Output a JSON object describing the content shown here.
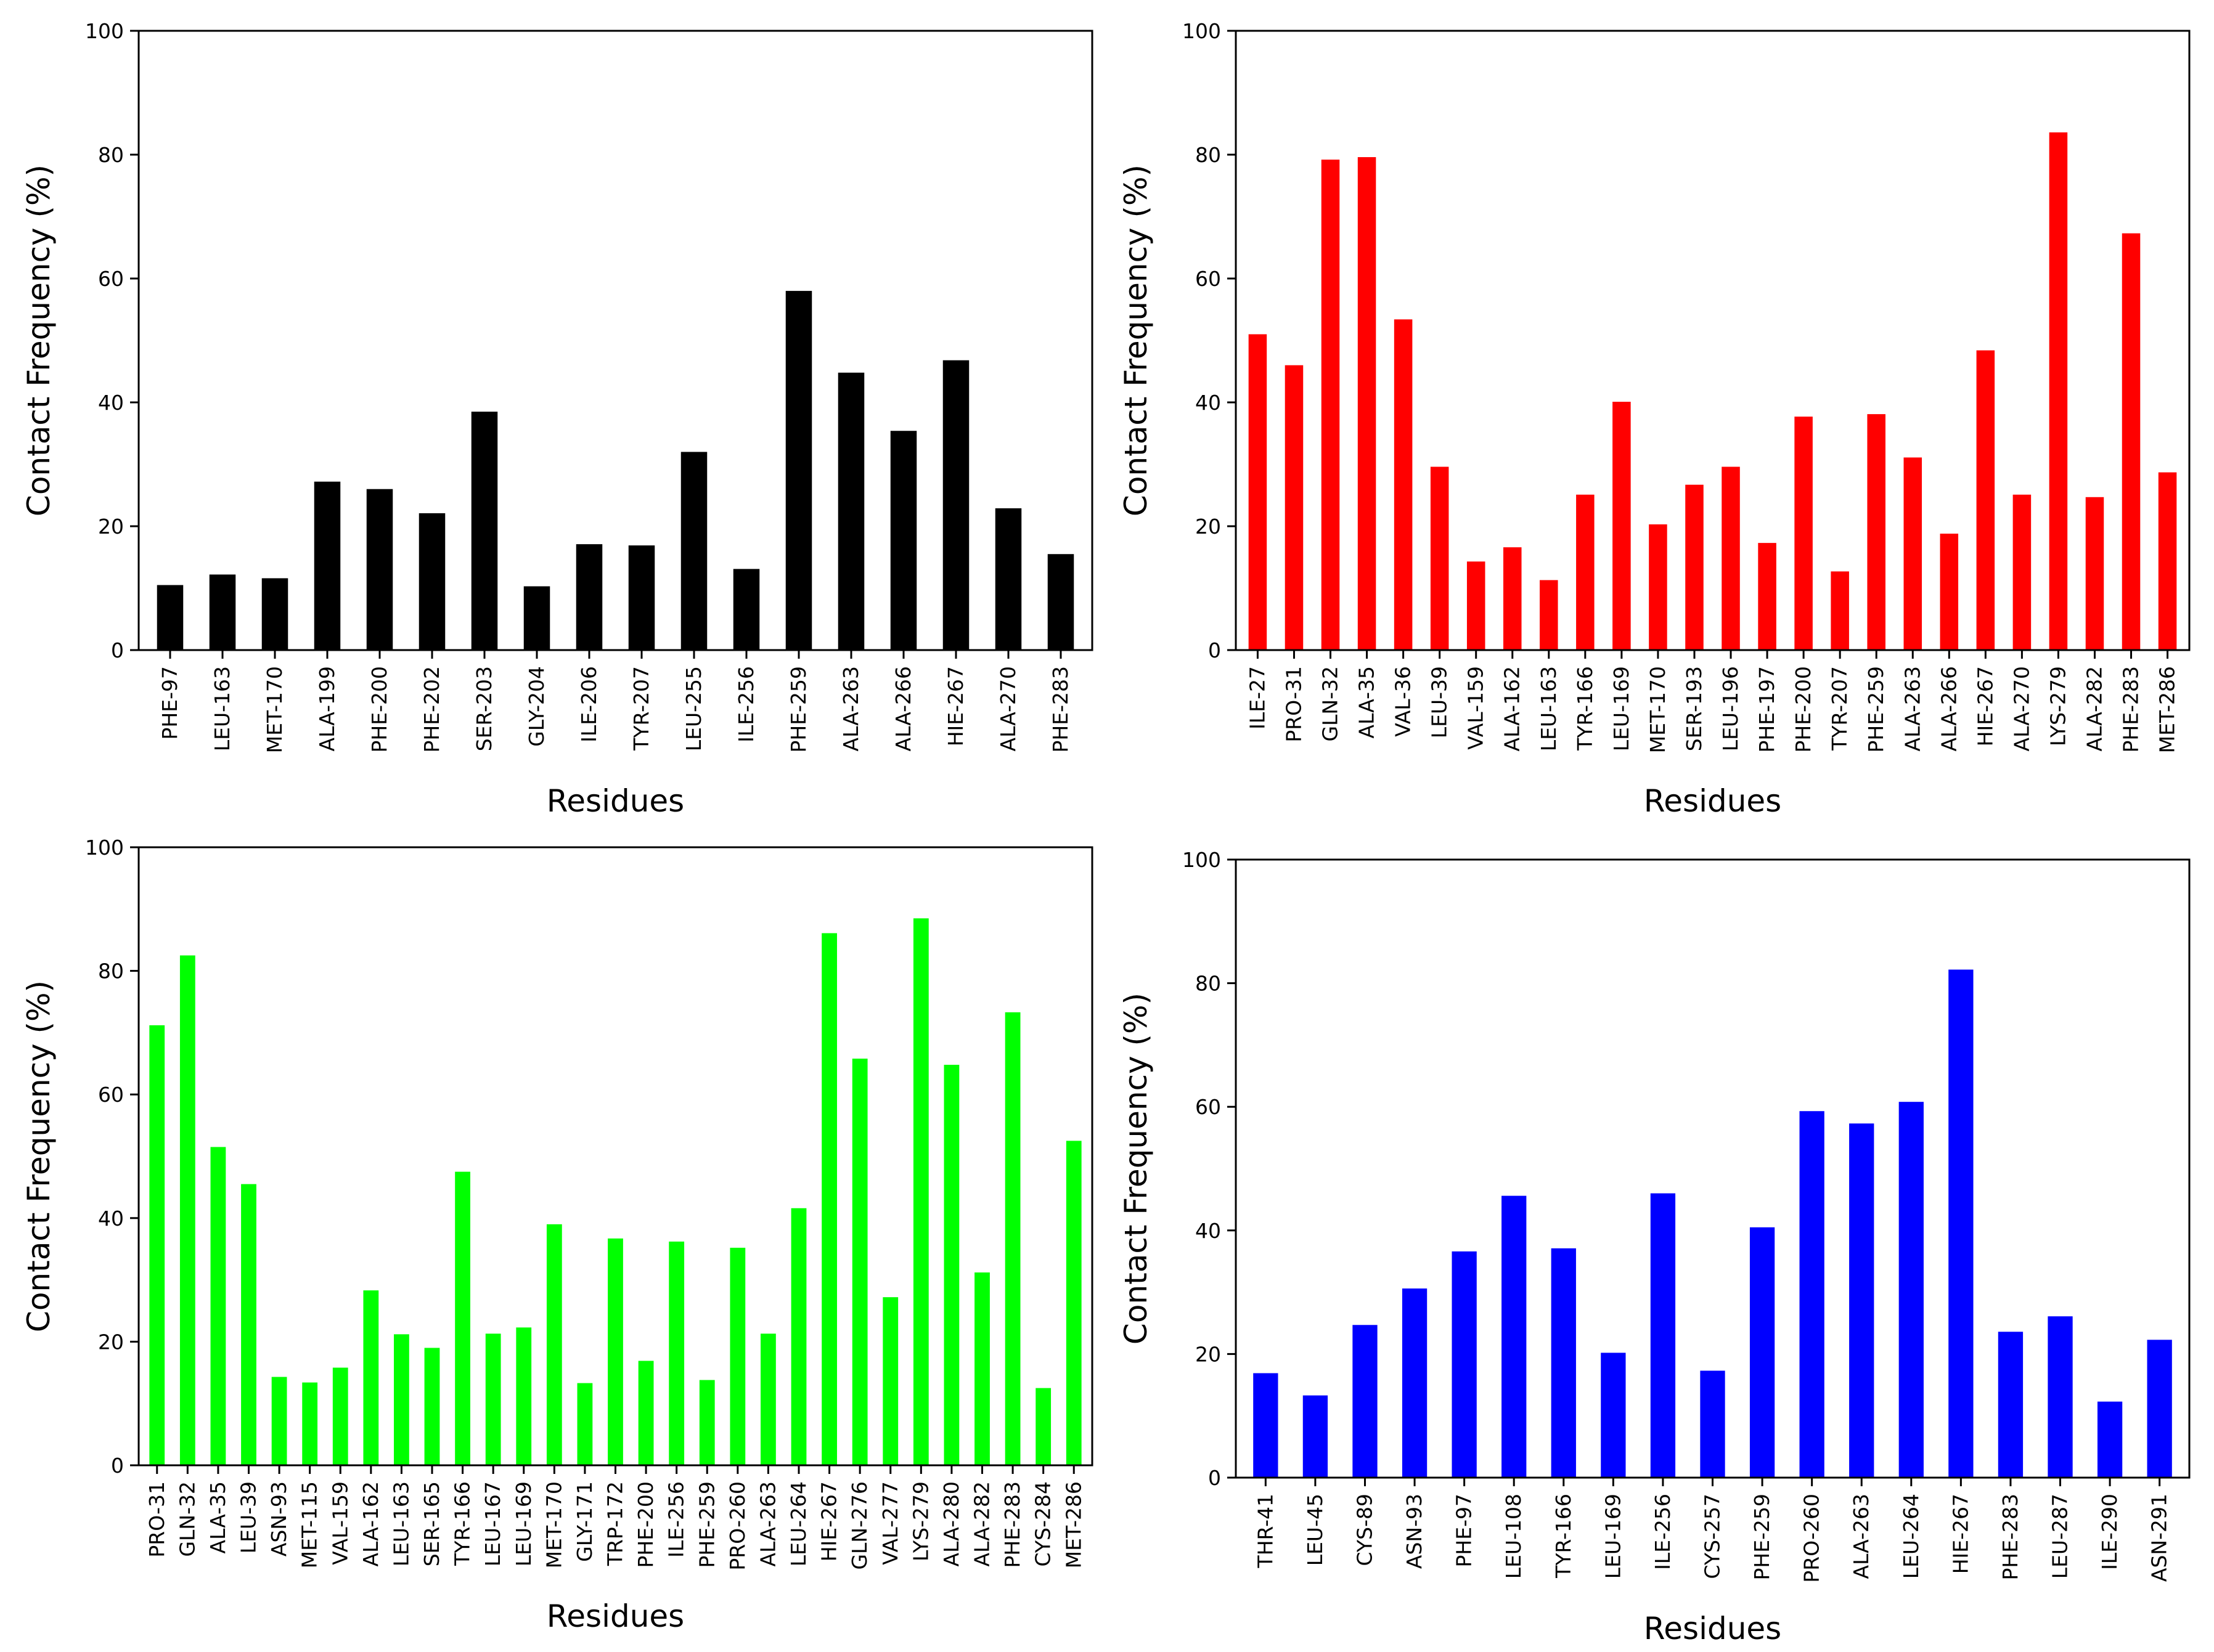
{
  "chart_data": [
    {
      "type": "bar",
      "panel": "top-left",
      "color": "#000000",
      "xlabel": "Residues",
      "ylabel": "Contact Frequency (%)",
      "ylim": [
        0,
        100
      ],
      "yticks": [
        0,
        20,
        40,
        60,
        80,
        100
      ],
      "categories": [
        "PHE-97",
        "LEU-163",
        "MET-170",
        "ALA-199",
        "PHE-200",
        "PHE-202",
        "SER-203",
        "GLY-204",
        "ILE-206",
        "TYR-207",
        "LEU-255",
        "ILE-256",
        "PHE-259",
        "ALA-263",
        "ALA-266",
        "HIE-267",
        "ALA-270",
        "PHE-283"
      ],
      "values": [
        10.5,
        12.2,
        11.6,
        27.2,
        26.0,
        22.1,
        38.5,
        10.3,
        17.1,
        16.9,
        32.0,
        13.1,
        58.0,
        44.8,
        35.4,
        46.8,
        22.9,
        15.5
      ]
    },
    {
      "type": "bar",
      "panel": "top-right",
      "color": "#ff0000",
      "xlabel": "Residues",
      "ylabel": "Contact Frequency (%)",
      "ylim": [
        0,
        100
      ],
      "yticks": [
        0,
        20,
        40,
        60,
        80,
        100
      ],
      "categories": [
        "ILE-27",
        "PRO-31",
        "GLN-32",
        "ALA-35",
        "VAL-36",
        "LEU-39",
        "VAL-159",
        "ALA-162",
        "LEU-163",
        "TYR-166",
        "LEU-169",
        "MET-170",
        "SER-193",
        "LEU-196",
        "PHE-197",
        "PHE-200",
        "TYR-207",
        "PHE-259",
        "ALA-263",
        "ALA-266",
        "HIE-267",
        "ALA-270",
        "LYS-279",
        "ALA-282",
        "PHE-283",
        "MET-286"
      ],
      "values": [
        51.0,
        46.0,
        79.2,
        79.6,
        53.4,
        29.6,
        14.3,
        16.6,
        11.3,
        25.1,
        40.1,
        20.3,
        26.7,
        29.6,
        17.3,
        37.7,
        12.7,
        38.1,
        31.1,
        18.8,
        48.4,
        25.1,
        83.6,
        24.7,
        67.3,
        28.7
      ]
    },
    {
      "type": "bar",
      "panel": "bottom-left",
      "color": "#00ff00",
      "xlabel": "Residues",
      "ylabel": "Contact Frequency (%)",
      "ylim": [
        0,
        100
      ],
      "yticks": [
        0,
        20,
        40,
        60,
        80,
        100
      ],
      "categories": [
        "PRO-31",
        "GLN-32",
        "ALA-35",
        "LEU-39",
        "ASN-93",
        "MET-115",
        "VAL-159",
        "ALA-162",
        "LEU-163",
        "SER-165",
        "TYR-166",
        "LEU-167",
        "LEU-169",
        "MET-170",
        "GLY-171",
        "TRP-172",
        "PHE-200",
        "ILE-256",
        "PHE-259",
        "PRO-260",
        "ALA-263",
        "LEU-264",
        "HIE-267",
        "GLN-276",
        "VAL-277",
        "LYS-279",
        "ALA-280",
        "ALA-282",
        "PHE-283",
        "CYS-284",
        "MET-286"
      ],
      "values": [
        71.2,
        82.5,
        51.5,
        45.5,
        14.3,
        13.4,
        15.8,
        28.3,
        21.2,
        19.0,
        47.5,
        21.3,
        22.3,
        39.0,
        13.3,
        36.7,
        16.9,
        36.2,
        13.8,
        35.2,
        21.3,
        41.6,
        86.1,
        65.8,
        27.2,
        88.5,
        64.8,
        31.2,
        73.3,
        12.5,
        52.5
      ]
    },
    {
      "type": "bar",
      "panel": "bottom-right",
      "color": "#0000ff",
      "xlabel": "Residues",
      "ylabel": "Contact Frequency (%)",
      "ylim": [
        0,
        100
      ],
      "yticks": [
        0,
        20,
        40,
        60,
        80,
        100
      ],
      "categories": [
        "THR-41",
        "LEU-45",
        "CYS-89",
        "ASN-93",
        "PHE-97",
        "LEU-108",
        "TYR-166",
        "LEU-169",
        "ILE-256",
        "CYS-257",
        "PHE-259",
        "PRO-260",
        "ALA-263",
        "LEU-264",
        "HIE-267",
        "PHE-283",
        "LEU-287",
        "ILE-290",
        "ASN-291"
      ],
      "values": [
        16.9,
        13.3,
        24.7,
        30.6,
        36.6,
        45.6,
        37.1,
        20.2,
        46.0,
        17.3,
        40.5,
        59.3,
        57.3,
        60.8,
        82.2,
        23.6,
        26.1,
        12.3,
        22.3
      ]
    }
  ]
}
